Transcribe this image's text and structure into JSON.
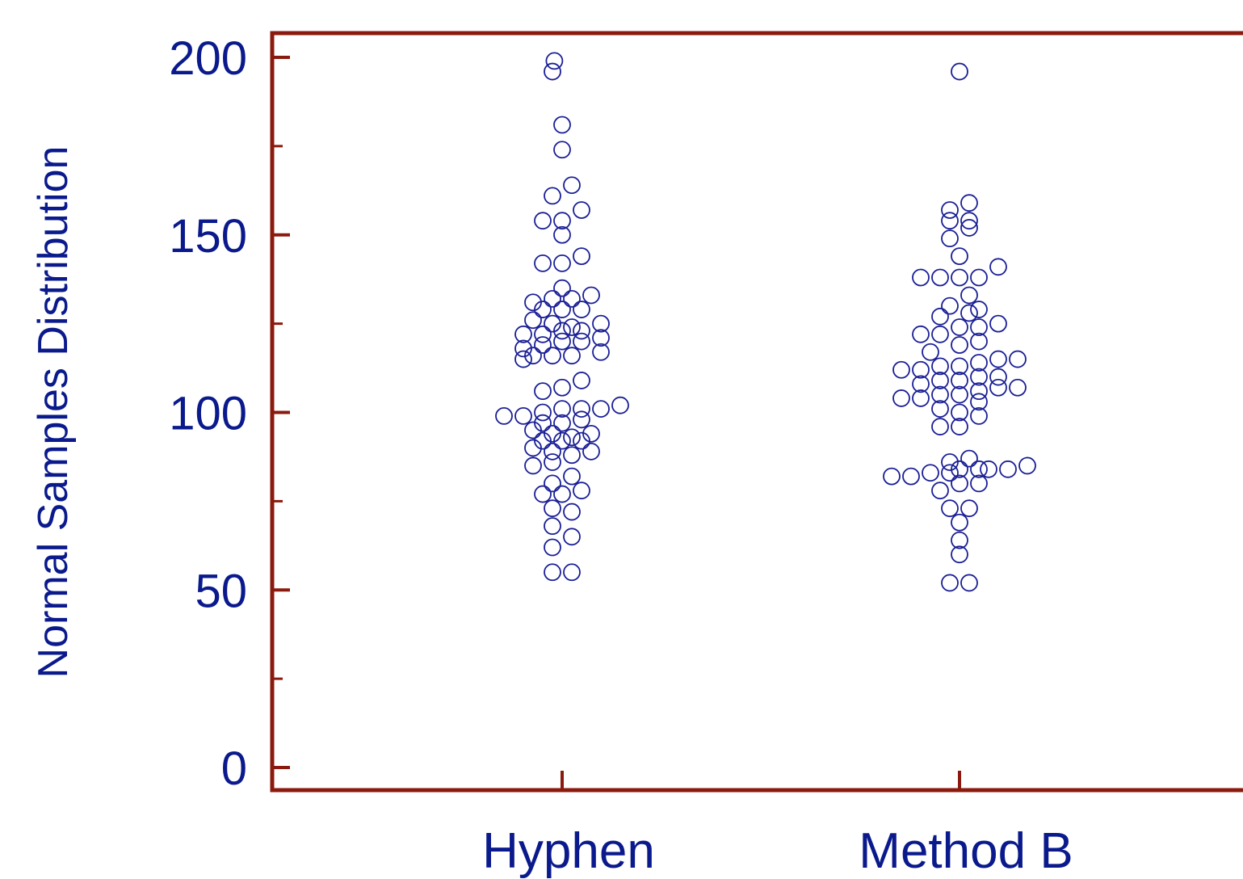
{
  "chart_data": {
    "type": "scatter",
    "subtype": "beeswarm",
    "title": "",
    "xlabel": "",
    "ylabel": "Normal Samples Distribution",
    "ylim": [
      -6,
      206
    ],
    "yticks": [
      0,
      50,
      100,
      150,
      200
    ],
    "categories": [
      "Hyphen",
      "Method B"
    ],
    "colors": {
      "axis": "#8b1a0e",
      "text": "#0a1a8c",
      "marker": "#1a1f96"
    },
    "marker": "open-circle",
    "grid": false,
    "legend": "none",
    "series": [
      {
        "category": "Hyphen",
        "points": [
          [
            -0.5,
            196
          ],
          [
            -0.4,
            199
          ],
          [
            0,
            181
          ],
          [
            0,
            174
          ],
          [
            -0.5,
            161
          ],
          [
            0.5,
            164
          ],
          [
            1,
            157
          ],
          [
            -1,
            154
          ],
          [
            0,
            154
          ],
          [
            0,
            150
          ],
          [
            -1,
            142
          ],
          [
            0,
            142
          ],
          [
            1,
            144
          ],
          [
            0,
            135
          ],
          [
            -1.5,
            131
          ],
          [
            -0.5,
            132
          ],
          [
            0.5,
            132
          ],
          [
            1.5,
            133
          ],
          [
            -1,
            129
          ],
          [
            0,
            129
          ],
          [
            1,
            129
          ],
          [
            -1.5,
            126
          ],
          [
            -0.5,
            125
          ],
          [
            0.5,
            124
          ],
          [
            2,
            125
          ],
          [
            -2,
            122
          ],
          [
            -1,
            122
          ],
          [
            0,
            123
          ],
          [
            1,
            123
          ],
          [
            2,
            121
          ],
          [
            -2,
            118
          ],
          [
            -1,
            119
          ],
          [
            0,
            120
          ],
          [
            1,
            120
          ],
          [
            -1.5,
            116
          ],
          [
            -0.5,
            116
          ],
          [
            0.5,
            116
          ],
          [
            2,
            117
          ],
          [
            -2,
            115
          ],
          [
            1,
            109
          ],
          [
            -1,
            106
          ],
          [
            0,
            107
          ],
          [
            0,
            101
          ],
          [
            1,
            101
          ],
          [
            -1,
            100
          ],
          [
            2,
            101
          ],
          [
            3,
            102
          ],
          [
            -3,
            99
          ],
          [
            -2,
            99
          ],
          [
            1,
            98
          ],
          [
            -1,
            97
          ],
          [
            0,
            97
          ],
          [
            -1.5,
            95
          ],
          [
            -0.5,
            94
          ],
          [
            0.5,
            93
          ],
          [
            1.5,
            94
          ],
          [
            -1,
            92
          ],
          [
            0,
            92
          ],
          [
            1,
            92
          ],
          [
            -1.5,
            90
          ],
          [
            -0.5,
            89
          ],
          [
            0.5,
            88
          ],
          [
            1.5,
            89
          ],
          [
            -1.5,
            85
          ],
          [
            -0.5,
            86
          ],
          [
            0.5,
            82
          ],
          [
            -0.5,
            80
          ],
          [
            1,
            78
          ],
          [
            -1,
            77
          ],
          [
            0,
            77
          ],
          [
            -0.5,
            73
          ],
          [
            0.5,
            72
          ],
          [
            -0.5,
            68
          ],
          [
            0.5,
            65
          ],
          [
            -0.5,
            62
          ],
          [
            -0.5,
            55
          ],
          [
            0.5,
            55
          ]
        ]
      },
      {
        "category": "Method B",
        "points": [
          [
            0,
            196
          ],
          [
            0.5,
            159
          ],
          [
            -0.5,
            157
          ],
          [
            -0.5,
            154
          ],
          [
            0.5,
            154
          ],
          [
            -0.5,
            149
          ],
          [
            0.5,
            152
          ],
          [
            0,
            144
          ],
          [
            -2,
            138
          ],
          [
            -1,
            138
          ],
          [
            0,
            138
          ],
          [
            1,
            138
          ],
          [
            2,
            141
          ],
          [
            0.5,
            133
          ],
          [
            -0.5,
            130
          ],
          [
            0.5,
            128
          ],
          [
            1,
            129
          ],
          [
            -1,
            127
          ],
          [
            0,
            124
          ],
          [
            1,
            124
          ],
          [
            2,
            125
          ],
          [
            -2,
            122
          ],
          [
            -1,
            122
          ],
          [
            0,
            119
          ],
          [
            1,
            120
          ],
          [
            -1.5,
            117
          ],
          [
            -1,
            113
          ],
          [
            0,
            113
          ],
          [
            1,
            114
          ],
          [
            2,
            115
          ],
          [
            3,
            115
          ],
          [
            -3,
            112
          ],
          [
            -2,
            112
          ],
          [
            -1,
            109
          ],
          [
            0,
            109
          ],
          [
            1,
            110
          ],
          [
            2,
            110
          ],
          [
            -2,
            108
          ],
          [
            2,
            107
          ],
          [
            3,
            107
          ],
          [
            -1,
            105
          ],
          [
            0,
            105
          ],
          [
            1,
            106
          ],
          [
            -3,
            104
          ],
          [
            -2,
            104
          ],
          [
            1,
            103
          ],
          [
            -1,
            101
          ],
          [
            0,
            100
          ],
          [
            1,
            99
          ],
          [
            -1,
            96
          ],
          [
            0,
            96
          ],
          [
            0.5,
            87
          ],
          [
            -0.5,
            86
          ],
          [
            0,
            84
          ],
          [
            1,
            84
          ],
          [
            1.5,
            84
          ],
          [
            2.5,
            84
          ],
          [
            3.5,
            85
          ],
          [
            -3.5,
            82
          ],
          [
            -2.5,
            82
          ],
          [
            -1.5,
            83
          ],
          [
            -0.5,
            83
          ],
          [
            0,
            80
          ],
          [
            1,
            80
          ],
          [
            -1,
            78
          ],
          [
            -0.5,
            73
          ],
          [
            0.5,
            73
          ],
          [
            0,
            69
          ],
          [
            0,
            64
          ],
          [
            0,
            60
          ],
          [
            -0.5,
            52
          ],
          [
            0.5,
            52
          ]
        ]
      }
    ]
  }
}
